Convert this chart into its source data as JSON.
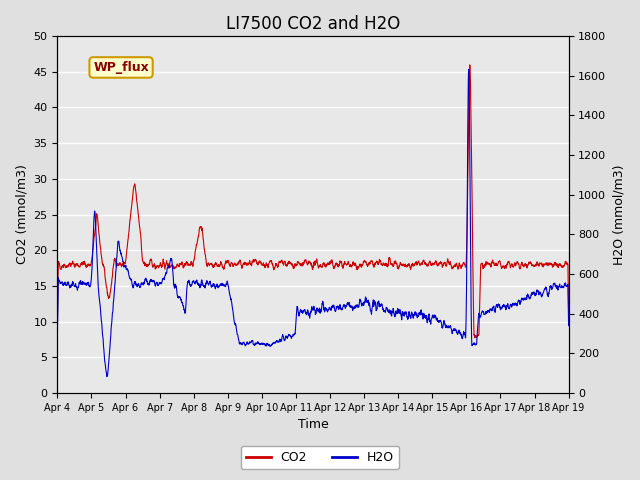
{
  "title": "LI7500 CO2 and H2O",
  "xlabel": "Time",
  "ylabel_left": "CO2 (mmol/m3)",
  "ylabel_right": "H2O (mmol/m3)",
  "co2_color": "#CC0000",
  "h2o_color": "#0000CC",
  "background_color": "#E8E8E8",
  "plot_bg_color": "#E8E8E8",
  "grid_color": "#FFFFFF",
  "ylim_left": [
    0,
    50
  ],
  "ylim_right": [
    0,
    1800
  ],
  "yticks_left": [
    0,
    5,
    10,
    15,
    20,
    25,
    30,
    35,
    40,
    45,
    50
  ],
  "yticks_right": [
    0,
    200,
    400,
    600,
    800,
    1000,
    1200,
    1400,
    1600,
    1800
  ],
  "xtick_labels": [
    "Apr 4",
    "Apr 5",
    "Apr 6",
    "Apr 7",
    "Apr 8",
    "Apr 9",
    "Apr 10",
    "Apr 11",
    "Apr 12",
    "Apr 13",
    "Apr 14",
    "Apr 15",
    "Apr 16",
    "Apr 17",
    "Apr 18",
    "Apr 19"
  ],
  "watermark_text": "WP_flux",
  "watermark_bg": "#FFFFCC",
  "watermark_border": "#CC9900",
  "watermark_text_color": "#880000",
  "legend_co2": "CO2",
  "legend_h2o": "H2O",
  "title_fontsize": 12,
  "axis_fontsize": 9,
  "tick_fontsize": 8
}
